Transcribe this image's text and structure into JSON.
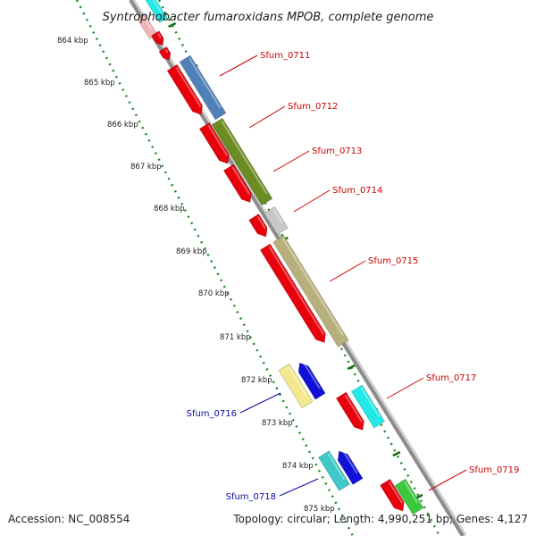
{
  "title": "Syntrophobacter fumaroxidans MPOB, complete genome",
  "footer": {
    "accession": "Accession: NC_008554",
    "summary": "Topology: circular; Length: 4,990,251 bp; Genes: 4,127"
  },
  "ruler": [
    "864 kbp",
    "865 kbp",
    "866 kbp",
    "867 kbp",
    "868 kbp",
    "869 kbp",
    "870 kbp",
    "871 kbp",
    "872 kbp",
    "873 kbp",
    "874 kbp",
    "875 kbp"
  ],
  "features": [
    {
      "label": "Sfum_0711",
      "strand": "plus",
      "color": "#d06666"
    },
    {
      "label": "Sfum_0712",
      "strand": "plus",
      "color": "#d06666"
    },
    {
      "label": "Sfum_0713",
      "strand": "plus",
      "color": "#d06666"
    },
    {
      "label": "Sfum_0714",
      "strand": "plus",
      "color": "#d06666"
    },
    {
      "label": "Sfum_0715",
      "strand": "plus",
      "color": "#d06666"
    },
    {
      "label": "Sfum_0716",
      "strand": "minus",
      "color": "#1a1aa8"
    },
    {
      "label": "Sfum_0717",
      "strand": "plus",
      "color": "#d06666"
    },
    {
      "label": "Sfum_0718",
      "strand": "minus",
      "color": "#1a1aa8"
    },
    {
      "label": "Sfum_0719",
      "strand": "plus",
      "color": "#d06666"
    }
  ],
  "colors": {
    "backbone": "#8c8c8c",
    "cds": "#e8000a",
    "ticks": "#1f8a1f",
    "steelblue": "#4f81b8",
    "olive": "#6b8c22",
    "grey": "#c8c8c8",
    "khaki": "#b8b07c",
    "yellow": "#f2e88e",
    "blue": "#1010d8",
    "cyan": "#22e8e8",
    "teal": "#3ec8c8",
    "green": "#3cc83c",
    "pink": "#f0b4b4"
  }
}
